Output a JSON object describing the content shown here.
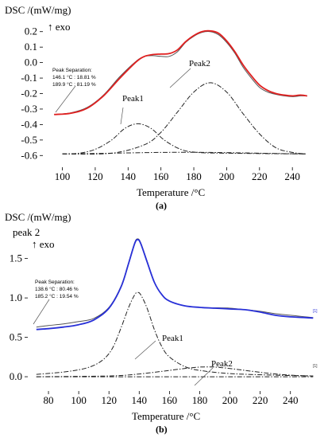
{
  "chart_data": [
    {
      "panel": "(a)",
      "type": "line",
      "ylabel": "DSC /(mW/mg)",
      "y_annotation": "↑ exo",
      "xlabel": "Temperature /°C",
      "xlim": [
        92,
        252
      ],
      "ylim": [
        -0.65,
        0.25
      ],
      "x_ticks": [
        100,
        120,
        140,
        160,
        180,
        200,
        220,
        240
      ],
      "y_ticks": [
        0.2,
        0.1,
        0.0,
        -0.1,
        -0.2,
        -0.3,
        -0.4,
        -0.5,
        -0.6
      ],
      "y_tick_labels": [
        "0.2",
        "0.1",
        "0.0",
        "-0.1",
        "-0.2",
        "-0.3",
        "-0.4",
        "-0.5",
        "-0.6"
      ],
      "separation_note": [
        "Peak Separation:",
        "146.1 °C : 18.81 %",
        "189.9 °C : 81.19 %"
      ],
      "peak_labels": [
        "Peak1",
        "Peak2"
      ],
      "series": [
        {
          "role": "measured",
          "color": "#555555",
          "dash": "solid",
          "points": [
            [
              95,
              -0.335
            ],
            [
              105,
              -0.325
            ],
            [
              115,
              -0.29
            ],
            [
              125,
              -0.21
            ],
            [
              135,
              -0.09
            ],
            [
              145,
              0.01
            ],
            [
              150,
              0.04
            ],
            [
              155,
              0.045
            ],
            [
              160,
              0.04
            ],
            [
              165,
              0.04
            ],
            [
              170,
              0.07
            ],
            [
              175,
              0.13
            ],
            [
              180,
              0.17
            ],
            [
              185,
              0.195
            ],
            [
              190,
              0.2
            ],
            [
              195,
              0.18
            ],
            [
              200,
              0.13
            ],
            [
              205,
              0.06
            ],
            [
              210,
              -0.03
            ],
            [
              215,
              -0.1
            ],
            [
              220,
              -0.16
            ],
            [
              225,
              -0.19
            ],
            [
              230,
              -0.205
            ],
            [
              235,
              -0.215
            ],
            [
              240,
              -0.22
            ],
            [
              245,
              -0.215
            ],
            [
              249,
              -0.215
            ]
          ]
        },
        {
          "role": "fit",
          "color": "#e02020",
          "dash": "solid",
          "points": [
            [
              95,
              -0.335
            ],
            [
              105,
              -0.327
            ],
            [
              115,
              -0.295
            ],
            [
              125,
              -0.215
            ],
            [
              135,
              -0.1
            ],
            [
              145,
              0.005
            ],
            [
              150,
              0.04
            ],
            [
              155,
              0.052
            ],
            [
              160,
              0.055
            ],
            [
              165,
              0.058
            ],
            [
              170,
              0.082
            ],
            [
              175,
              0.135
            ],
            [
              180,
              0.175
            ],
            [
              185,
              0.2
            ],
            [
              190,
              0.205
            ],
            [
              195,
              0.19
            ],
            [
              200,
              0.14
            ],
            [
              205,
              0.07
            ],
            [
              210,
              -0.015
            ],
            [
              215,
              -0.085
            ],
            [
              220,
              -0.145
            ],
            [
              225,
              -0.18
            ],
            [
              230,
              -0.2
            ],
            [
              235,
              -0.21
            ],
            [
              240,
              -0.215
            ],
            [
              245,
              -0.21
            ],
            [
              249,
              -0.215
            ]
          ]
        },
        {
          "role": "baseline",
          "color": "#222222",
          "dash": "dashdot",
          "points": [
            [
              100,
              -0.59
            ],
            [
              130,
              -0.585
            ],
            [
              160,
              -0.58
            ],
            [
              190,
              -0.58
            ],
            [
              220,
              -0.585
            ],
            [
              248,
              -0.59
            ]
          ]
        },
        {
          "role": "Peak1",
          "color": "#222222",
          "dash": "dashdot",
          "points": [
            [
              100,
              -0.59
            ],
            [
              110,
              -0.585
            ],
            [
              120,
              -0.56
            ],
            [
              130,
              -0.5
            ],
            [
              138,
              -0.425
            ],
            [
              146,
              -0.395
            ],
            [
              154,
              -0.425
            ],
            [
              162,
              -0.5
            ],
            [
              172,
              -0.56
            ],
            [
              182,
              -0.58
            ],
            [
              200,
              -0.585
            ],
            [
              248,
              -0.59
            ]
          ]
        },
        {
          "role": "Peak2",
          "color": "#222222",
          "dash": "dashdot",
          "points": [
            [
              100,
              -0.59
            ],
            [
              130,
              -0.585
            ],
            [
              150,
              -0.53
            ],
            [
              160,
              -0.45
            ],
            [
              170,
              -0.32
            ],
            [
              180,
              -0.19
            ],
            [
              190,
              -0.13
            ],
            [
              200,
              -0.19
            ],
            [
              210,
              -0.33
            ],
            [
              220,
              -0.46
            ],
            [
              230,
              -0.55
            ],
            [
              240,
              -0.58
            ],
            [
              248,
              -0.59
            ]
          ]
        }
      ]
    },
    {
      "panel": "(b)",
      "type": "line",
      "ylabel": "DSC /(mW/mg)",
      "y_annotation_top": "peak 2",
      "y_annotation": "↑ exo",
      "xlabel": "Temperature /°C",
      "xlim": [
        70,
        258
      ],
      "ylim": [
        -0.05,
        1.85
      ],
      "x_ticks": [
        80,
        100,
        120,
        140,
        160,
        180,
        200,
        220,
        240
      ],
      "y_ticks": [
        1.5,
        1.0,
        0.5,
        0.0
      ],
      "y_tick_labels": [
        "1.5",
        "1.0",
        "0.5",
        "0.0"
      ],
      "separation_note": [
        "Peak Separation:",
        "138.6 °C : 80.46 %",
        "185.2 °C : 19.54 %"
      ],
      "peak_labels": [
        "Peak1",
        "Peak2"
      ],
      "end_markers": [
        "[1]",
        "[1]"
      ],
      "series": [
        {
          "role": "measured",
          "color": "#555555",
          "dash": "solid",
          "points": [
            [
              72,
              0.63
            ],
            [
              80,
              0.65
            ],
            [
              90,
              0.67
            ],
            [
              100,
              0.7
            ],
            [
              110,
              0.74
            ],
            [
              120,
              0.88
            ],
            [
              128,
              1.15
            ],
            [
              133,
              1.45
            ],
            [
              137,
              1.7
            ],
            [
              139,
              1.75
            ],
            [
              141,
              1.7
            ],
            [
              145,
              1.48
            ],
            [
              150,
              1.2
            ],
            [
              155,
              1.04
            ],
            [
              160,
              0.96
            ],
            [
              170,
              0.9
            ],
            [
              180,
              0.88
            ],
            [
              190,
              0.875
            ],
            [
              200,
              0.87
            ],
            [
              210,
              0.85
            ],
            [
              220,
              0.83
            ],
            [
              230,
              0.8
            ],
            [
              240,
              0.78
            ],
            [
              250,
              0.76
            ],
            [
              255,
              0.75
            ]
          ]
        },
        {
          "role": "fit",
          "color": "#2830d8",
          "dash": "solid",
          "points": [
            [
              72,
              0.6
            ],
            [
              80,
              0.61
            ],
            [
              90,
              0.63
            ],
            [
              100,
              0.66
            ],
            [
              110,
              0.72
            ],
            [
              120,
              0.87
            ],
            [
              128,
              1.14
            ],
            [
              133,
              1.44
            ],
            [
              137,
              1.69
            ],
            [
              139,
              1.74
            ],
            [
              141,
              1.69
            ],
            [
              145,
              1.47
            ],
            [
              150,
              1.2
            ],
            [
              155,
              1.04
            ],
            [
              160,
              0.96
            ],
            [
              170,
              0.9
            ],
            [
              180,
              0.88
            ],
            [
              190,
              0.87
            ],
            [
              200,
              0.86
            ],
            [
              210,
              0.85
            ],
            [
              220,
              0.82
            ],
            [
              230,
              0.78
            ],
            [
              240,
              0.76
            ],
            [
              250,
              0.75
            ],
            [
              255,
              0.745
            ]
          ]
        },
        {
          "role": "baseline",
          "color": "#222222",
          "dash": "dashdot",
          "points": [
            [
              72,
              0.0
            ],
            [
              120,
              0.0
            ],
            [
              180,
              0.0
            ],
            [
              255,
              0.0
            ]
          ]
        },
        {
          "role": "Peak1",
          "color": "#222222",
          "dash": "dashdot",
          "points": [
            [
              72,
              0.03
            ],
            [
              90,
              0.06
            ],
            [
              105,
              0.11
            ],
            [
              115,
              0.2
            ],
            [
              122,
              0.35
            ],
            [
              128,
              0.62
            ],
            [
              133,
              0.88
            ],
            [
              137,
              1.04
            ],
            [
              139,
              1.07
            ],
            [
              141,
              1.04
            ],
            [
              145,
              0.88
            ],
            [
              150,
              0.6
            ],
            [
              155,
              0.38
            ],
            [
              160,
              0.25
            ],
            [
              170,
              0.13
            ],
            [
              180,
              0.08
            ],
            [
              200,
              0.04
            ],
            [
              230,
              0.02
            ],
            [
              255,
              0.01
            ]
          ]
        },
        {
          "role": "Peak2",
          "color": "#222222",
          "dash": "dashdot",
          "points": [
            [
              72,
              0.0
            ],
            [
              120,
              0.01
            ],
            [
              140,
              0.035
            ],
            [
              160,
              0.08
            ],
            [
              175,
              0.115
            ],
            [
              185,
              0.125
            ],
            [
              195,
              0.115
            ],
            [
              210,
              0.08
            ],
            [
              225,
              0.045
            ],
            [
              240,
              0.02
            ],
            [
              255,
              0.01
            ]
          ]
        }
      ]
    }
  ]
}
